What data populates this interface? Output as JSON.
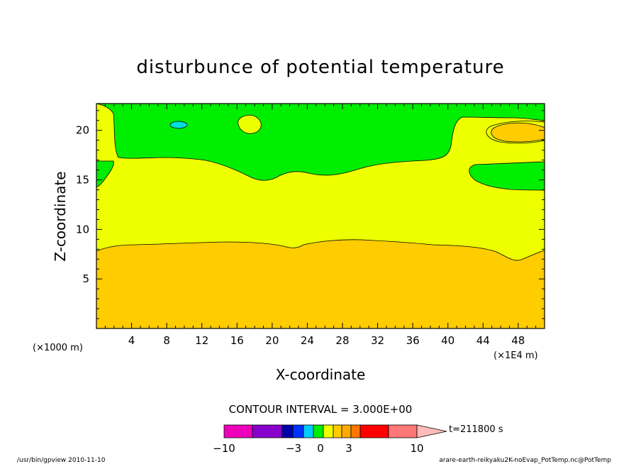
{
  "chart_data": {
    "type": "contour",
    "title": "disturbunce of potential temperature",
    "xlabel": "X-coordinate",
    "ylabel": "Z-coordinate",
    "x_unit_left": "(×1000 m)",
    "x_unit_right": "(×1E4 m)",
    "xlim": [
      0,
      51
    ],
    "ylim": [
      0,
      22.7
    ],
    "x_ticks": [
      4,
      8,
      12,
      16,
      20,
      24,
      28,
      32,
      36,
      40,
      44,
      48
    ],
    "y_ticks": [
      5,
      10,
      15,
      20
    ],
    "contour_interval_label": "CONTOUR INTERVAL = 3.000E+00",
    "time_label": "t=211800 s",
    "levels": [
      {
        "color": "#ffcc00",
        "label": "3 to 6"
      },
      {
        "color": "#eeff00",
        "label": "0 to 3"
      },
      {
        "color": "#00ee00",
        "label": "-3 to 0"
      },
      {
        "color": "#00dddd",
        "label": "-6 to -3"
      }
    ],
    "colorbar": {
      "colors": [
        "#ee00bb",
        "#8800cc",
        "#0000aa",
        "#0033ff",
        "#00ccff",
        "#00ee00",
        "#eeff00",
        "#ffcc00",
        "#ffaa00",
        "#ff7700",
        "#ff0000",
        "#ff7777",
        "#ffbbbb"
      ],
      "tick_labels": [
        "−10",
        "−3",
        "0",
        "3",
        "10"
      ]
    },
    "footer_left": "/usr/bin/gpview   2010-11-10",
    "footer_right": "arare-earth-reikyaku2K-noEvap_PotTemp.nc@PotTemp",
    "grid": false
  }
}
